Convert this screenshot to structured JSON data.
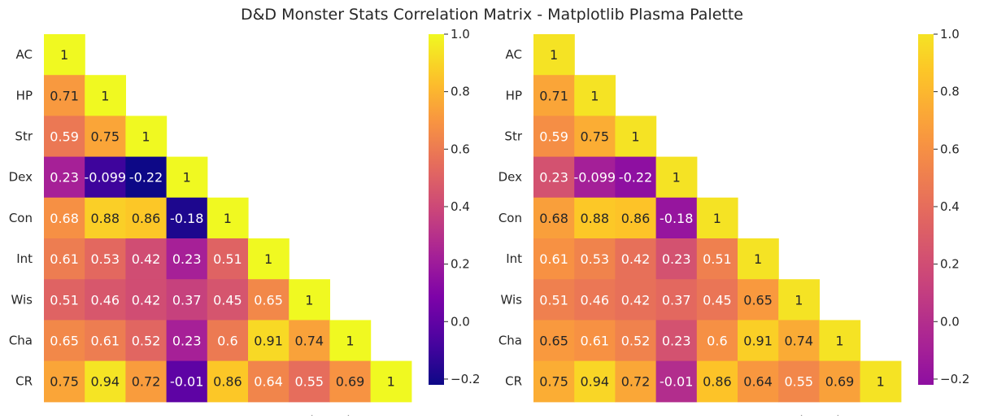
{
  "title": "D&D Monster Stats Correlation Matrix - Matplotlib Plasma Palette",
  "chart_data": [
    {
      "type": "heatmap",
      "colormap": "plasma",
      "mask": "upper-triangle",
      "annotate": true,
      "categories": [
        "AC",
        "HP",
        "Str",
        "Dex",
        "Con",
        "Int",
        "Wis",
        "Cha",
        "CR"
      ],
      "values": [
        [
          1,
          null,
          null,
          null,
          null,
          null,
          null,
          null,
          null
        ],
        [
          0.71,
          1,
          null,
          null,
          null,
          null,
          null,
          null,
          null
        ],
        [
          0.59,
          0.75,
          1,
          null,
          null,
          null,
          null,
          null,
          null
        ],
        [
          0.23,
          -0.099,
          -0.22,
          1,
          null,
          null,
          null,
          null,
          null
        ],
        [
          0.68,
          0.88,
          0.86,
          -0.18,
          1,
          null,
          null,
          null,
          null
        ],
        [
          0.61,
          0.53,
          0.42,
          0.23,
          0.51,
          1,
          null,
          null,
          null
        ],
        [
          0.51,
          0.46,
          0.42,
          0.37,
          0.45,
          0.65,
          1,
          null,
          null
        ],
        [
          0.65,
          0.61,
          0.52,
          0.23,
          0.6,
          0.91,
          0.74,
          1,
          null
        ],
        [
          0.75,
          0.94,
          0.72,
          -0.01,
          0.86,
          0.64,
          0.55,
          0.69,
          1
        ]
      ],
      "labels": [
        [
          "1",
          "",
          "",
          "",
          "",
          "",
          "",
          "",
          ""
        ],
        [
          "0.71",
          "1",
          "",
          "",
          "",
          "",
          "",
          "",
          ""
        ],
        [
          "0.59",
          "0.75",
          "1",
          "",
          "",
          "",
          "",
          "",
          ""
        ],
        [
          "0.23",
          "-0.099",
          "-0.22",
          "1",
          "",
          "",
          "",
          "",
          ""
        ],
        [
          "0.68",
          "0.88",
          "0.86",
          "-0.18",
          "1",
          "",
          "",
          "",
          ""
        ],
        [
          "0.61",
          "0.53",
          "0.42",
          "0.23",
          "0.51",
          "1",
          "",
          "",
          ""
        ],
        [
          "0.51",
          "0.46",
          "0.42",
          "0.37",
          "0.45",
          "0.65",
          "1",
          "",
          ""
        ],
        [
          "0.65",
          "0.61",
          "0.52",
          "0.23",
          "0.6",
          "0.91",
          "0.74",
          "1",
          ""
        ],
        [
          "0.75",
          "0.94",
          "0.72",
          "-0.01",
          "0.86",
          "0.64",
          "0.55",
          "0.69",
          "1"
        ]
      ],
      "vmin": -0.22,
      "vmax": 1.0,
      "colorbar_ticks": [
        -0.2,
        0.0,
        0.2,
        0.4,
        0.6,
        0.8,
        1.0
      ],
      "colorbar_tick_labels": [
        "−0.2",
        "0.0",
        "0.2",
        "0.4",
        "0.6",
        "0.8",
        "1.0"
      ]
    },
    {
      "type": "heatmap",
      "colormap": "plasma",
      "colormap_range": [
        0.3,
        0.95
      ],
      "mask": "upper-triangle",
      "annotate": true,
      "categories": [
        "AC",
        "HP",
        "Str",
        "Dex",
        "Con",
        "Int",
        "Wis",
        "Cha",
        "CR"
      ],
      "values": [
        [
          1,
          null,
          null,
          null,
          null,
          null,
          null,
          null,
          null
        ],
        [
          0.71,
          1,
          null,
          null,
          null,
          null,
          null,
          null,
          null
        ],
        [
          0.59,
          0.75,
          1,
          null,
          null,
          null,
          null,
          null,
          null
        ],
        [
          0.23,
          -0.099,
          -0.22,
          1,
          null,
          null,
          null,
          null,
          null
        ],
        [
          0.68,
          0.88,
          0.86,
          -0.18,
          1,
          null,
          null,
          null,
          null
        ],
        [
          0.61,
          0.53,
          0.42,
          0.23,
          0.51,
          1,
          null,
          null,
          null
        ],
        [
          0.51,
          0.46,
          0.42,
          0.37,
          0.45,
          0.65,
          1,
          null,
          null
        ],
        [
          0.65,
          0.61,
          0.52,
          0.23,
          0.6,
          0.91,
          0.74,
          1,
          null
        ],
        [
          0.75,
          0.94,
          0.72,
          -0.01,
          0.86,
          0.64,
          0.55,
          0.69,
          1
        ]
      ],
      "labels": [
        [
          "1",
          "",
          "",
          "",
          "",
          "",
          "",
          "",
          ""
        ],
        [
          "0.71",
          "1",
          "",
          "",
          "",
          "",
          "",
          "",
          ""
        ],
        [
          "0.59",
          "0.75",
          "1",
          "",
          "",
          "",
          "",
          "",
          ""
        ],
        [
          "0.23",
          "-0.099",
          "-0.22",
          "1",
          "",
          "",
          "",
          "",
          ""
        ],
        [
          "0.68",
          "0.88",
          "0.86",
          "-0.18",
          "1",
          "",
          "",
          "",
          ""
        ],
        [
          "0.61",
          "0.53",
          "0.42",
          "0.23",
          "0.51",
          "1",
          "",
          "",
          ""
        ],
        [
          "0.51",
          "0.46",
          "0.42",
          "0.37",
          "0.45",
          "0.65",
          "1",
          "",
          ""
        ],
        [
          "0.65",
          "0.61",
          "0.52",
          "0.23",
          "0.6",
          "0.91",
          "0.74",
          "1",
          ""
        ],
        [
          "0.75",
          "0.94",
          "0.72",
          "-0.01",
          "0.86",
          "0.64",
          "0.55",
          "0.69",
          "1"
        ]
      ],
      "vmin": -0.22,
      "vmax": 1.0,
      "colorbar_ticks": [
        -0.2,
        0.0,
        0.2,
        0.4,
        0.6,
        0.8,
        1.0
      ],
      "colorbar_tick_labels": [
        "−0.2",
        "0.0",
        "0.2",
        "0.4",
        "0.6",
        "0.8",
        "1.0"
      ]
    }
  ]
}
